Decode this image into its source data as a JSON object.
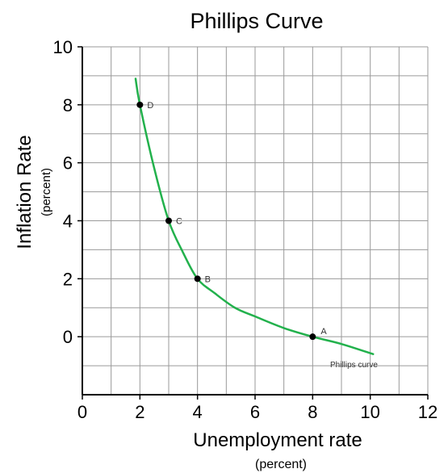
{
  "chart_data": {
    "type": "line",
    "title": "Phillips Curve",
    "xlabel": "Unemployment rate",
    "xlabel_sub": "(percent)",
    "ylabel": "Inflation Rate",
    "ylabel_sub": "(percent)",
    "xlim": [
      0,
      12
    ],
    "ylim": [
      -2,
      10
    ],
    "xticks": [
      0,
      2,
      4,
      6,
      8,
      10,
      12
    ],
    "yticks": [
      0,
      2,
      4,
      6,
      8,
      10
    ],
    "grid": true,
    "curve_color": "#22b14c",
    "series": [
      {
        "name": "Phillips curve",
        "x": [
          1.85,
          2.0,
          2.5,
          3.0,
          3.5,
          4.0,
          4.6,
          5.3,
          6.0,
          7.0,
          8.0,
          9.0,
          10.1
        ],
        "y": [
          8.9,
          8.0,
          5.8,
          4.0,
          2.9,
          2.0,
          1.5,
          1.0,
          0.7,
          0.3,
          0.0,
          -0.25,
          -0.6
        ]
      }
    ],
    "points": [
      {
        "label": "D",
        "x": 2,
        "y": 8
      },
      {
        "label": "C",
        "x": 3,
        "y": 4
      },
      {
        "label": "B",
        "x": 4,
        "y": 2
      },
      {
        "label": "A",
        "x": 8,
        "y": 0
      }
    ]
  }
}
